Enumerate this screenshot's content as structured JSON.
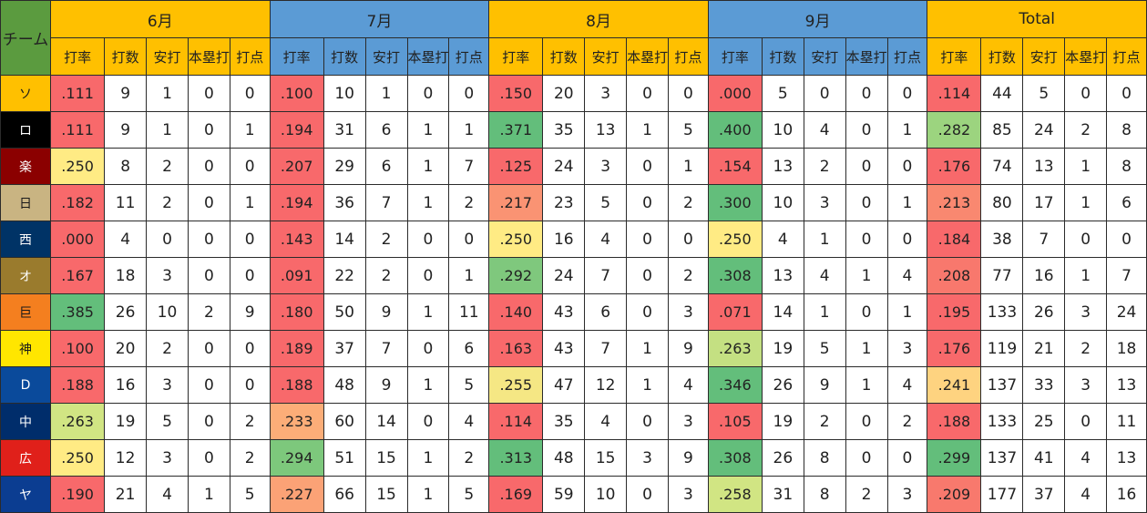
{
  "table": {
    "team_label": "チーム",
    "groups": [
      {
        "label": "6月",
        "color": "#ffc000"
      },
      {
        "label": "7月",
        "color": "#5b9bd5"
      },
      {
        "label": "8月",
        "color": "#ffc000"
      },
      {
        "label": "9月",
        "color": "#5b9bd5"
      },
      {
        "label": "Total",
        "color": "#ffc000"
      }
    ],
    "columns": [
      "打率",
      "打数",
      "安打",
      "本塁打",
      "打点"
    ],
    "rows": [
      {
        "team": "ソ",
        "team_bg": "#ffc000",
        "team_fg": "#1a1a1a",
        "months": [
          [
            ".111",
            "9",
            "1",
            "0",
            "0"
          ],
          [
            ".100",
            "10",
            "1",
            "0",
            "0"
          ],
          [
            ".150",
            "20",
            "3",
            "0",
            "0"
          ],
          [
            ".000",
            "5",
            "0",
            "0",
            "0"
          ],
          [
            ".114",
            "44",
            "5",
            "0",
            "0"
          ]
        ],
        "rate_colors": [
          "#f8696b",
          "#f8696b",
          "#f8696b",
          "#f8696b",
          "#f8696b"
        ]
      },
      {
        "team": "ロ",
        "team_bg": "#000000",
        "team_fg": "#ffffff",
        "months": [
          [
            ".111",
            "9",
            "1",
            "0",
            "1"
          ],
          [
            ".194",
            "31",
            "6",
            "1",
            "1"
          ],
          [
            ".371",
            "35",
            "13",
            "1",
            "5"
          ],
          [
            ".400",
            "10",
            "4",
            "0",
            "1"
          ],
          [
            ".282",
            "85",
            "24",
            "2",
            "8"
          ]
        ],
        "rate_colors": [
          "#f8696b",
          "#f8696b",
          "#63be7b",
          "#63be7b",
          "#9cd47f"
        ]
      },
      {
        "team": "楽",
        "team_bg": "#8b0000",
        "team_fg": "#ffffff",
        "months": [
          [
            ".250",
            "8",
            "2",
            "0",
            "0"
          ],
          [
            ".207",
            "29",
            "6",
            "1",
            "7"
          ],
          [
            ".125",
            "24",
            "3",
            "0",
            "1"
          ],
          [
            ".154",
            "13",
            "2",
            "0",
            "0"
          ],
          [
            ".176",
            "74",
            "13",
            "1",
            "8"
          ]
        ],
        "rate_colors": [
          "#ffeb84",
          "#f8696b",
          "#f8696b",
          "#f8696b",
          "#f8696b"
        ]
      },
      {
        "team": "日",
        "team_bg": "#c9b482",
        "team_fg": "#1a1a1a",
        "months": [
          [
            ".182",
            "11",
            "2",
            "0",
            "1"
          ],
          [
            ".194",
            "36",
            "7",
            "1",
            "2"
          ],
          [
            ".217",
            "23",
            "5",
            "0",
            "2"
          ],
          [
            ".300",
            "10",
            "3",
            "0",
            "1"
          ],
          [
            ".213",
            "80",
            "17",
            "1",
            "6"
          ]
        ],
        "rate_colors": [
          "#f8696b",
          "#f8696b",
          "#fa9373",
          "#63be7b",
          "#f98870"
        ]
      },
      {
        "team": "西",
        "team_bg": "#003366",
        "team_fg": "#ffffff",
        "months": [
          [
            ".000",
            "4",
            "0",
            "0",
            "0"
          ],
          [
            ".143",
            "14",
            "2",
            "0",
            "0"
          ],
          [
            ".250",
            "16",
            "4",
            "0",
            "0"
          ],
          [
            ".250",
            "4",
            "1",
            "0",
            "0"
          ],
          [
            ".184",
            "38",
            "7",
            "0",
            "0"
          ]
        ],
        "rate_colors": [
          "#f8696b",
          "#f8696b",
          "#ffeb84",
          "#ffeb84",
          "#f8696b"
        ]
      },
      {
        "team": "オ",
        "team_bg": "#9a7b2d",
        "team_fg": "#ffffff",
        "months": [
          [
            ".167",
            "18",
            "3",
            "0",
            "0"
          ],
          [
            ".091",
            "22",
            "2",
            "0",
            "1"
          ],
          [
            ".292",
            "24",
            "7",
            "0",
            "2"
          ],
          [
            ".308",
            "13",
            "4",
            "1",
            "4"
          ],
          [
            ".208",
            "77",
            "16",
            "1",
            "7"
          ]
        ],
        "rate_colors": [
          "#f8696b",
          "#f8696b",
          "#7fc87d",
          "#63be7b",
          "#f8786d"
        ]
      },
      {
        "team": "巨",
        "team_bg": "#f47f1f",
        "team_fg": "#1a1a1a",
        "months": [
          [
            ".385",
            "26",
            "10",
            "2",
            "9"
          ],
          [
            ".180",
            "50",
            "9",
            "1",
            "11"
          ],
          [
            ".140",
            "43",
            "6",
            "0",
            "3"
          ],
          [
            ".071",
            "14",
            "1",
            "0",
            "1"
          ],
          [
            ".195",
            "133",
            "26",
            "3",
            "24"
          ]
        ],
        "rate_colors": [
          "#63be7b",
          "#f8696b",
          "#f8696b",
          "#f8696b",
          "#f8696b"
        ]
      },
      {
        "team": "神",
        "team_bg": "#ffe600",
        "team_fg": "#1a1a1a",
        "months": [
          [
            ".100",
            "20",
            "2",
            "0",
            "0"
          ],
          [
            ".189",
            "37",
            "7",
            "0",
            "6"
          ],
          [
            ".163",
            "43",
            "7",
            "1",
            "9"
          ],
          [
            ".263",
            "19",
            "5",
            "1",
            "3"
          ],
          [
            ".176",
            "119",
            "21",
            "2",
            "18"
          ]
        ],
        "rate_colors": [
          "#f8696b",
          "#f8696b",
          "#f8696b",
          "#c4e082",
          "#f8696b"
        ]
      },
      {
        "team": "D",
        "team_bg": "#0a4a9b",
        "team_fg": "#ffffff",
        "months": [
          [
            ".188",
            "16",
            "3",
            "0",
            "0"
          ],
          [
            ".188",
            "48",
            "9",
            "1",
            "5"
          ],
          [
            ".255",
            "47",
            "12",
            "1",
            "4"
          ],
          [
            ".346",
            "26",
            "9",
            "1",
            "4"
          ],
          [
            ".241",
            "137",
            "33",
            "3",
            "13"
          ]
        ],
        "rate_colors": [
          "#f8696b",
          "#f8696b",
          "#f5e784",
          "#63be7b",
          "#fed380"
        ]
      },
      {
        "team": "中",
        "team_bg": "#002d6b",
        "team_fg": "#ffffff",
        "months": [
          [
            ".263",
            "19",
            "5",
            "0",
            "2"
          ],
          [
            ".233",
            "60",
            "14",
            "0",
            "4"
          ],
          [
            ".114",
            "35",
            "4",
            "0",
            "3"
          ],
          [
            ".105",
            "19",
            "2",
            "0",
            "2"
          ],
          [
            ".188",
            "133",
            "25",
            "0",
            "11"
          ]
        ],
        "rate_colors": [
          "#d1e583",
          "#fcad78",
          "#f8696b",
          "#f8696b",
          "#f8696b"
        ]
      },
      {
        "team": "広",
        "team_bg": "#e0201a",
        "team_fg": "#ffffff",
        "months": [
          [
            ".250",
            "12",
            "3",
            "0",
            "2"
          ],
          [
            ".294",
            "51",
            "15",
            "1",
            "2"
          ],
          [
            ".313",
            "48",
            "15",
            "3",
            "9"
          ],
          [
            ".308",
            "26",
            "8",
            "0",
            "0"
          ],
          [
            ".299",
            "137",
            "41",
            "4",
            "13"
          ]
        ],
        "rate_colors": [
          "#ffeb84",
          "#7dc87c",
          "#63be7b",
          "#63be7b",
          "#63be7b"
        ]
      },
      {
        "team": "ヤ",
        "team_bg": "#0b3d91",
        "team_fg": "#ffffff",
        "months": [
          [
            ".190",
            "21",
            "4",
            "1",
            "5"
          ],
          [
            ".227",
            "66",
            "15",
            "1",
            "5"
          ],
          [
            ".169",
            "59",
            "10",
            "0",
            "3"
          ],
          [
            ".258",
            "31",
            "8",
            "2",
            "3"
          ],
          [
            ".209",
            "177",
            "37",
            "4",
            "16"
          ]
        ],
        "rate_colors": [
          "#f8696b",
          "#fba276",
          "#f8696b",
          "#d1e583",
          "#f8796d"
        ]
      }
    ]
  }
}
